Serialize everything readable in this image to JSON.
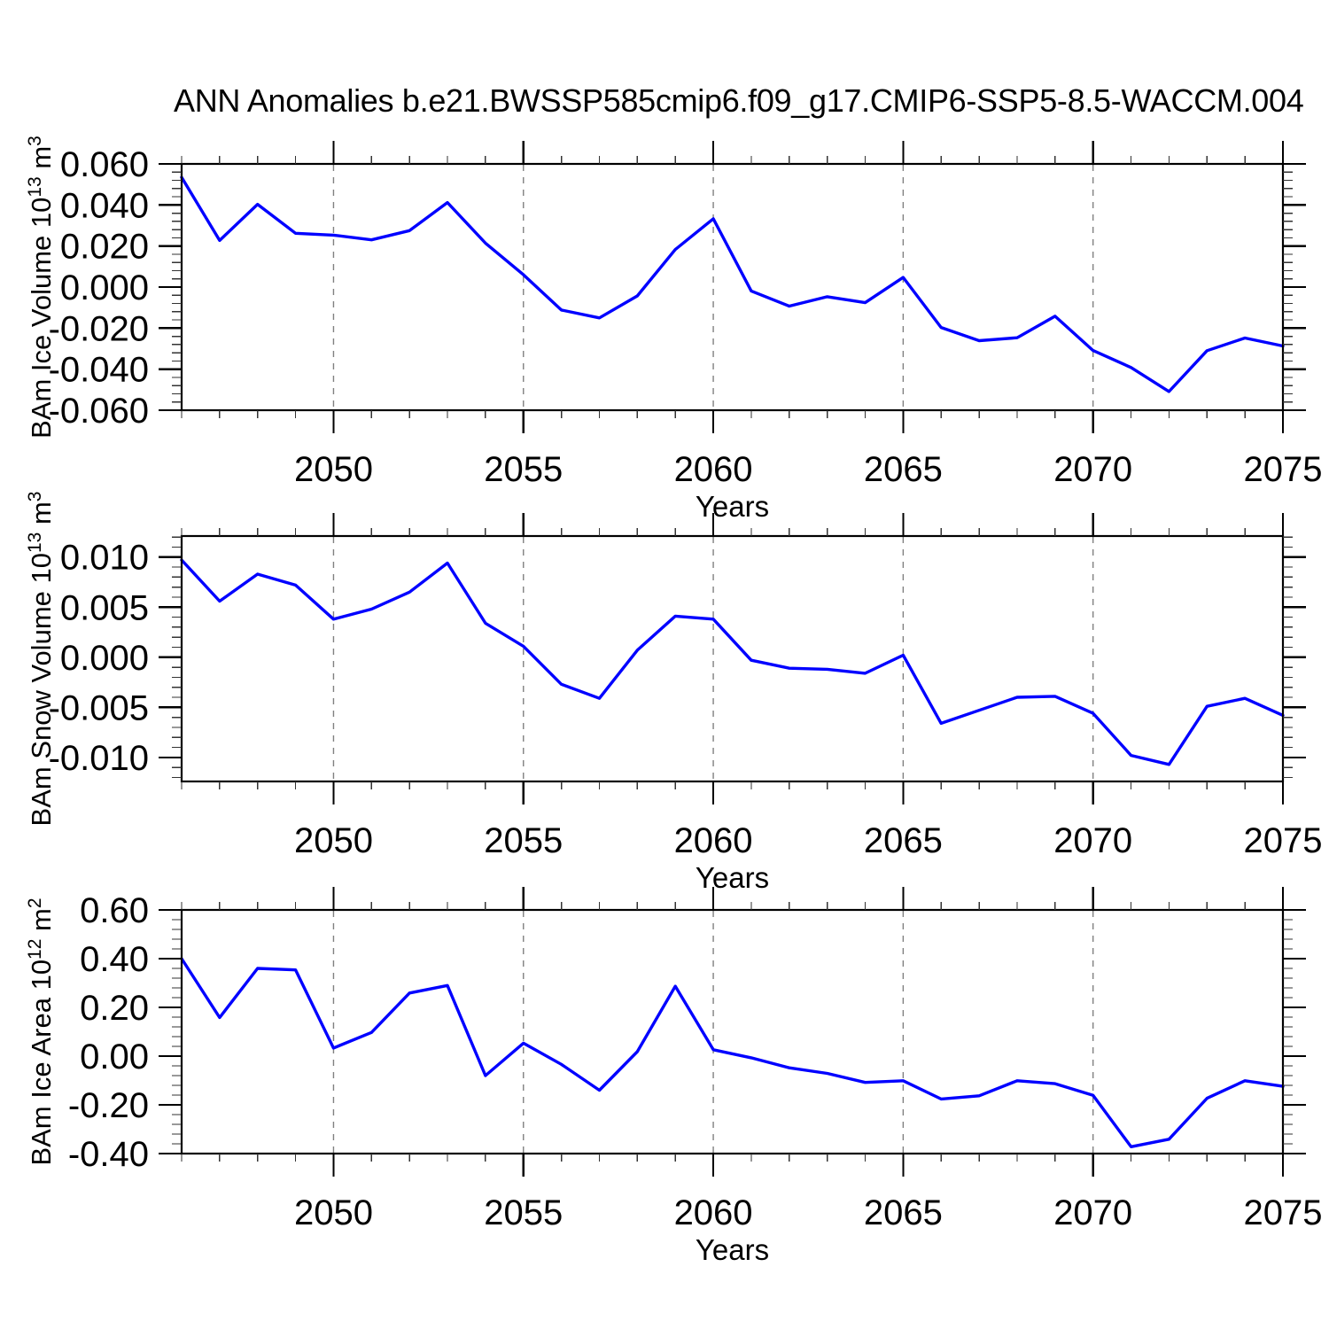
{
  "title": "ANN Anomalies b.e21.BWSSP585cmip6.f09_g17.CMIP6-SSP5-8.5-WACCM.004",
  "colors": {
    "line": "#0000ff",
    "axis": "#000000",
    "grid": "#808080",
    "minor_tick": "#333333",
    "background": "#ffffff"
  },
  "x_axis": {
    "label": "Years",
    "range": [
      2046,
      2075
    ],
    "major_ticks": [
      2050,
      2055,
      2060,
      2065,
      2070,
      2075
    ],
    "minor_step": 1,
    "grid_lines": [
      2050,
      2055,
      2060,
      2065,
      2070
    ]
  },
  "years": [
    2046,
    2047,
    2048,
    2049,
    2050,
    2051,
    2052,
    2053,
    2054,
    2055,
    2056,
    2057,
    2058,
    2059,
    2060,
    2061,
    2062,
    2063,
    2064,
    2065,
    2066,
    2067,
    2068,
    2069,
    2070,
    2071,
    2072,
    2073,
    2074,
    2075
  ],
  "chart_data": [
    {
      "type": "line",
      "name": "bam-ice-volume",
      "title": "",
      "xlabel": "Years",
      "ylabel_text": "BAm Ice Volume 10^13 m^3",
      "ylabel_segments": [
        [
          "t",
          "BAm Ice Volume 10"
        ],
        [
          "sup",
          "13"
        ],
        [
          "t",
          " m"
        ],
        [
          "sup",
          "3"
        ]
      ],
      "ylim": [
        -0.06,
        0.06
      ],
      "ytick_values": [
        0.06,
        0.04,
        0.02,
        0.0,
        -0.02,
        -0.04,
        -0.06
      ],
      "ytick_labels": [
        "0.060",
        "0.040",
        "0.020",
        "0.000",
        "-0.020",
        "-0.040",
        "-0.060"
      ],
      "y_minor_step": 0.004,
      "grid": "x-dashed",
      "legend": "none",
      "values": [
        0.0535,
        0.0227,
        0.0403,
        0.0262,
        0.0253,
        0.023,
        0.0275,
        0.0412,
        0.0214,
        0.006,
        -0.0112,
        -0.015,
        -0.0043,
        0.0183,
        0.0333,
        -0.0019,
        -0.0093,
        -0.0047,
        -0.0076,
        0.0047,
        -0.0197,
        -0.0261,
        -0.0247,
        -0.0142,
        -0.0309,
        -0.0392,
        -0.0509,
        -0.031,
        -0.0248,
        -0.0287
      ]
    },
    {
      "type": "line",
      "name": "bam-snow-volume",
      "title": "",
      "xlabel": "Years",
      "ylabel_text": "BAm Snow Volume 10^13 m^3",
      "ylabel_segments": [
        [
          "t",
          "BAm Snow Volume 10"
        ],
        [
          "sup",
          "13"
        ],
        [
          "t",
          " m"
        ],
        [
          "sup",
          "3"
        ]
      ],
      "ylim": [
        -0.0124,
        0.0121
      ],
      "ytick_values": [
        0.01,
        0.005,
        0.0,
        -0.005,
        -0.01
      ],
      "ytick_labels": [
        "0.010",
        "0.005",
        "0.000",
        "-0.005",
        "-0.010"
      ],
      "y_minor_step": 0.001,
      "grid": "x-dashed",
      "legend": "none",
      "values": [
        0.0097,
        0.0056,
        0.0083,
        0.0072,
        0.0038,
        0.0048,
        0.0065,
        0.0094,
        0.0034,
        0.0011,
        -0.0027,
        -0.0041,
        0.0007,
        0.0041,
        0.0038,
        -0.0003,
        -0.0011,
        -0.0012,
        -0.0016,
        0.0002,
        -0.0066,
        -0.0053,
        -0.004,
        -0.0039,
        -0.0056,
        -0.0098,
        -0.0107,
        -0.0049,
        -0.0041,
        -0.0058
      ]
    },
    {
      "type": "line",
      "name": "bam-ice-area",
      "title": "",
      "xlabel": "Years",
      "ylabel_text": "BAm Ice Area 10^12 m^2",
      "ylabel_segments": [
        [
          "t",
          "BAm Ice Area 10"
        ],
        [
          "sup",
          "12"
        ],
        [
          "t",
          " m"
        ],
        [
          "sup",
          "2"
        ]
      ],
      "ylim": [
        -0.4,
        0.6
      ],
      "ytick_values": [
        0.6,
        0.4,
        0.2,
        0.0,
        -0.2,
        -0.4
      ],
      "ytick_labels": [
        "0.60",
        "0.40",
        "0.20",
        "0.00",
        "-0.20",
        "-0.40"
      ],
      "y_minor_step": 0.04,
      "grid": "x-dashed",
      "legend": "none",
      "values": [
        0.4,
        0.158,
        0.36,
        0.354,
        0.033,
        0.097,
        0.259,
        0.29,
        -0.08,
        0.053,
        -0.034,
        -0.14,
        0.018,
        0.287,
        0.026,
        -0.007,
        -0.048,
        -0.071,
        -0.108,
        -0.101,
        -0.176,
        -0.163,
        -0.101,
        -0.113,
        -0.161,
        -0.372,
        -0.341,
        -0.173,
        -0.101,
        -0.124
      ]
    }
  ]
}
